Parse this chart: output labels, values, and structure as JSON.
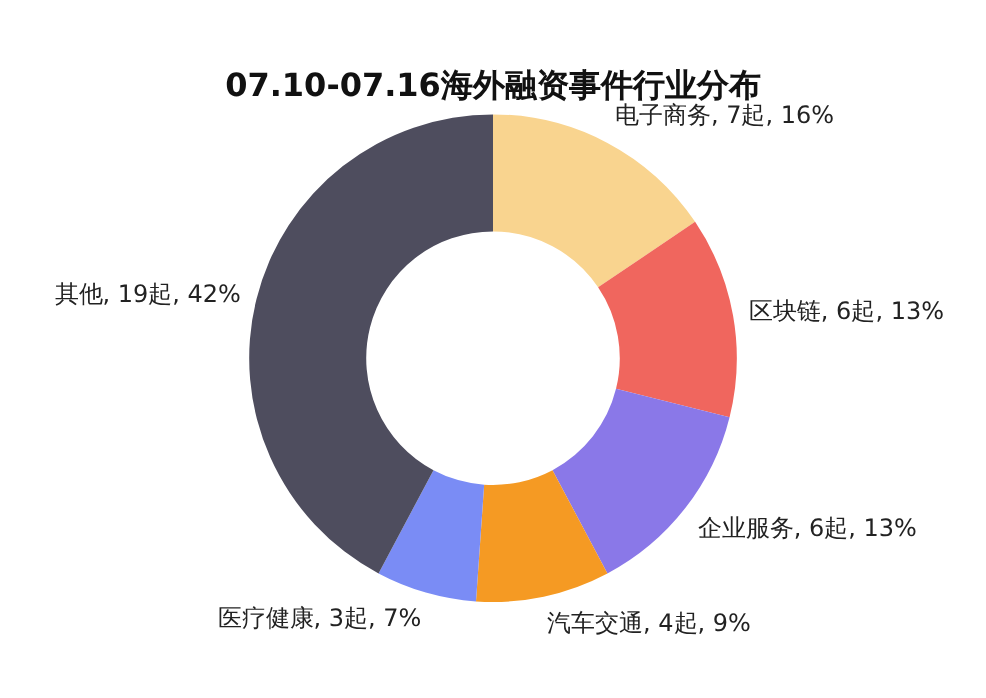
{
  "chart_data": {
    "type": "donut",
    "title": "07.10-07.16海外融资事件行业分布",
    "categories": [
      "电子商务",
      "区块链",
      "企业服务",
      "汽车交通",
      "医疗健康",
      "其他"
    ],
    "values": [
      7,
      6,
      6,
      4,
      3,
      19
    ],
    "value_labels": [
      "7起, 16%",
      "6起, 13%",
      "6起, 13%",
      "4起, 9%",
      "3起, 7%",
      "19起, 42%"
    ],
    "colors": [
      "#f9d48f",
      "#f0665e",
      "#8a78e8",
      "#f59a23",
      "#7a8cf5",
      "#4e4d5e"
    ],
    "legend": false
  }
}
